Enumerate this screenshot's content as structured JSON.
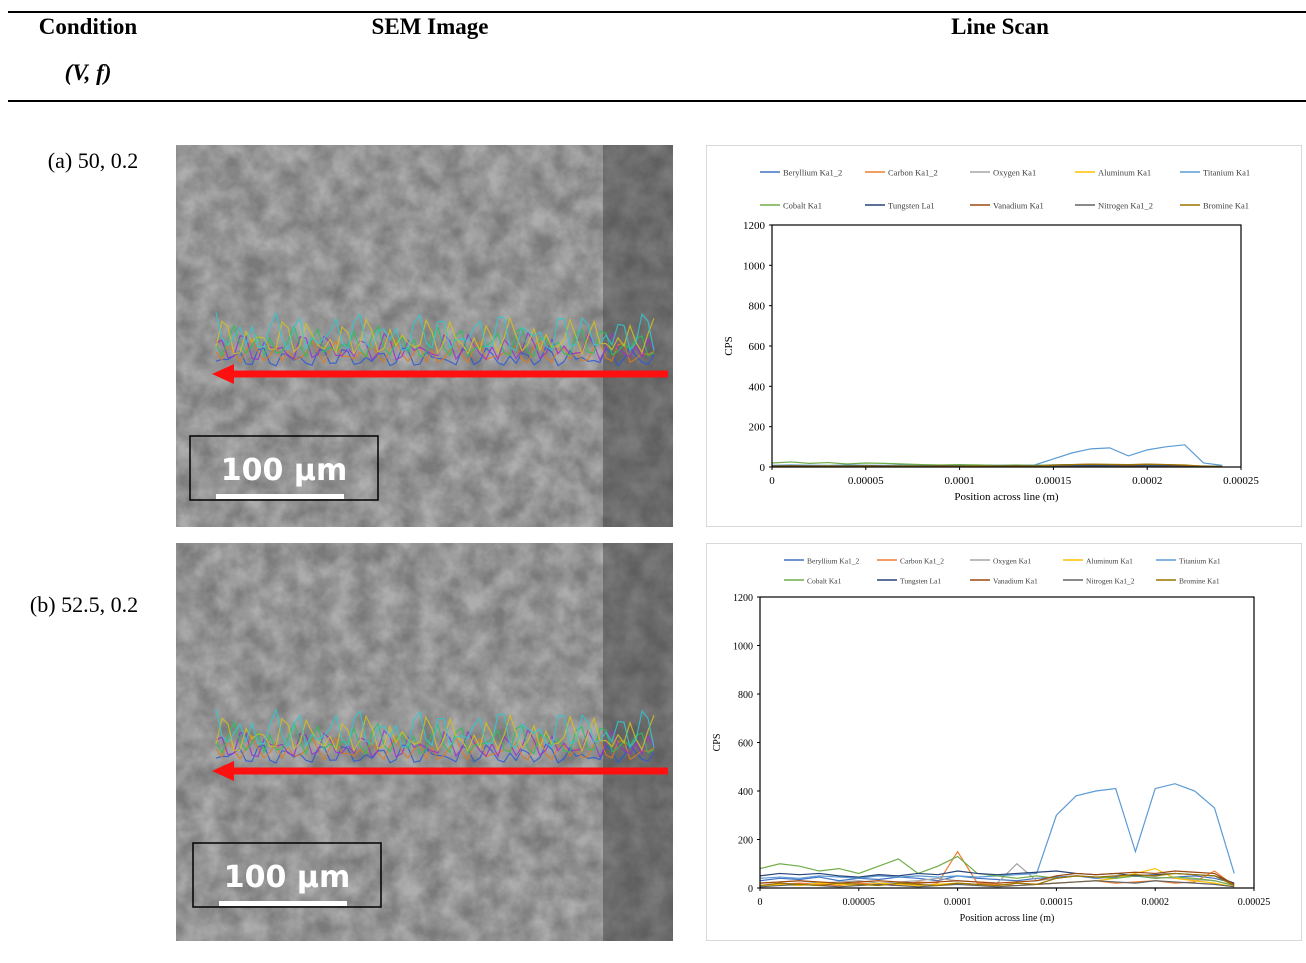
{
  "table": {
    "headers": [
      "Condition",
      "SEM Image",
      "Line Scan"
    ],
    "subheader": "(V, f)",
    "rows": [
      {
        "condition": "(a) 50, 0.2",
        "scale_bar": "100 µm"
      },
      {
        "condition": "(b) 52.5, 0.2",
        "scale_bar": "100 µm"
      }
    ]
  },
  "chart_data": [
    {
      "type": "line",
      "ylabel": "CPS",
      "xlabel": "Position across line (m)",
      "xlim": [
        0,
        0.00025
      ],
      "ylim": [
        0,
        1200
      ],
      "xticks": [
        0,
        5e-05,
        0.0001,
        0.00015,
        0.0002,
        0.00025
      ],
      "yticks": [
        0,
        200,
        400,
        600,
        800,
        1000,
        1200
      ],
      "x": [
        0,
        1e-05,
        2e-05,
        3e-05,
        4e-05,
        5e-05,
        6e-05,
        7e-05,
        8e-05,
        9e-05,
        0.0001,
        0.00011,
        0.00012,
        0.00013,
        0.00014,
        0.00015,
        0.00016,
        0.00017,
        0.00018,
        0.00019,
        0.0002,
        0.00021,
        0.00022,
        0.00023,
        0.00024
      ],
      "series": [
        {
          "name": "Beryllium Ka1_2",
          "color": "#4472c4",
          "values": [
            5,
            8,
            6,
            5,
            7,
            6,
            5,
            8,
            6,
            5,
            6,
            7,
            5,
            6,
            8,
            10,
            12,
            10,
            8,
            9,
            10,
            8,
            6,
            5,
            3
          ]
        },
        {
          "name": "Carbon Ka1_2",
          "color": "#ed7d31",
          "values": [
            3,
            4,
            5,
            3,
            4,
            5,
            4,
            3,
            5,
            4,
            3,
            4,
            5,
            4,
            3,
            5,
            6,
            8,
            7,
            6,
            5,
            6,
            4,
            3,
            2
          ]
        },
        {
          "name": "Oxygen Ka1",
          "color": "#a5a5a5",
          "values": [
            4,
            3,
            5,
            4,
            3,
            4,
            5,
            4,
            3,
            4,
            5,
            3,
            4,
            5,
            4,
            6,
            7,
            6,
            5,
            6,
            7,
            5,
            4,
            3,
            2
          ]
        },
        {
          "name": "Aluminum Ka1",
          "color": "#ffc000",
          "values": [
            2,
            3,
            2,
            3,
            2,
            3,
            2,
            3,
            2,
            3,
            2,
            3,
            2,
            3,
            2,
            4,
            5,
            4,
            5,
            4,
            5,
            4,
            3,
            2,
            1
          ]
        },
        {
          "name": "Titanium Ka1",
          "color": "#5b9bd5",
          "values": [
            8,
            10,
            9,
            8,
            10,
            9,
            8,
            10,
            9,
            8,
            9,
            10,
            8,
            9,
            10,
            40,
            70,
            90,
            95,
            55,
            85,
            100,
            110,
            20,
            8
          ]
        },
        {
          "name": "Cobalt Ka1",
          "color": "#70ad47",
          "values": [
            20,
            25,
            18,
            22,
            15,
            20,
            18,
            15,
            12,
            10,
            12,
            10,
            8,
            10,
            8,
            10,
            8,
            10,
            8,
            10,
            8,
            6,
            5,
            4,
            3
          ]
        },
        {
          "name": "Tungsten La1",
          "color": "#264478",
          "values": [
            6,
            7,
            6,
            5,
            6,
            7,
            6,
            5,
            6,
            7,
            6,
            5,
            6,
            7,
            6,
            8,
            9,
            8,
            7,
            8,
            9,
            8,
            6,
            4,
            2
          ]
        },
        {
          "name": "Vanadium Ka1",
          "color": "#9e480e",
          "values": [
            3,
            4,
            3,
            4,
            3,
            4,
            3,
            4,
            3,
            4,
            3,
            4,
            3,
            4,
            3,
            8,
            12,
            14,
            12,
            10,
            14,
            12,
            8,
            3,
            2
          ]
        },
        {
          "name": "Nitrogen Ka1_2",
          "color": "#636363",
          "values": [
            2,
            3,
            2,
            3,
            2,
            3,
            2,
            3,
            2,
            3,
            2,
            3,
            2,
            3,
            2,
            3,
            4,
            3,
            4,
            3,
            4,
            3,
            2,
            2,
            1
          ]
        },
        {
          "name": "Bromine Ka1",
          "color": "#997300",
          "values": [
            4,
            5,
            4,
            5,
            4,
            5,
            4,
            5,
            4,
            5,
            4,
            5,
            4,
            5,
            4,
            10,
            12,
            14,
            13,
            12,
            14,
            12,
            10,
            4,
            2
          ]
        }
      ]
    },
    {
      "type": "line",
      "ylabel": "CPS",
      "xlabel": "Position across line (m)",
      "xlim": [
        0,
        0.00025
      ],
      "ylim": [
        0,
        1200
      ],
      "xticks": [
        0,
        5e-05,
        0.0001,
        0.00015,
        0.0002,
        0.00025
      ],
      "yticks": [
        0,
        200,
        400,
        600,
        800,
        1000,
        1200
      ],
      "x": [
        0,
        1e-05,
        2e-05,
        3e-05,
        4e-05,
        5e-05,
        6e-05,
        7e-05,
        8e-05,
        9e-05,
        0.0001,
        0.00011,
        0.00012,
        0.00013,
        0.00014,
        0.00015,
        0.00016,
        0.00017,
        0.00018,
        0.00019,
        0.0002,
        0.00021,
        0.00022,
        0.00023,
        0.00024
      ],
      "series": [
        {
          "name": "Beryllium Ka1_2",
          "color": "#4472c4",
          "values": [
            30,
            40,
            35,
            45,
            30,
            40,
            35,
            45,
            40,
            30,
            50,
            40,
            35,
            30,
            40,
            45,
            50,
            40,
            45,
            50,
            40,
            45,
            50,
            40,
            20
          ]
        },
        {
          "name": "Carbon Ka1_2",
          "color": "#ed7d31",
          "values": [
            10,
            15,
            20,
            15,
            10,
            20,
            15,
            10,
            25,
            20,
            150,
            20,
            15,
            10,
            15,
            20,
            25,
            30,
            20,
            25,
            30,
            20,
            25,
            70,
            10
          ]
        },
        {
          "name": "Oxygen Ka1",
          "color": "#a5a5a5",
          "values": [
            20,
            25,
            30,
            20,
            25,
            30,
            20,
            25,
            30,
            40,
            30,
            25,
            20,
            100,
            30,
            40,
            50,
            45,
            40,
            50,
            45,
            40,
            35,
            30,
            10
          ]
        },
        {
          "name": "Aluminum Ka1",
          "color": "#ffc000",
          "values": [
            10,
            15,
            10,
            20,
            15,
            10,
            20,
            15,
            10,
            15,
            20,
            15,
            10,
            20,
            15,
            20,
            25,
            30,
            40,
            60,
            80,
            40,
            30,
            20,
            5
          ]
        },
        {
          "name": "Titanium Ka1",
          "color": "#5b9bd5",
          "values": [
            40,
            45,
            40,
            50,
            45,
            40,
            50,
            45,
            50,
            45,
            50,
            45,
            50,
            55,
            60,
            300,
            380,
            400,
            410,
            150,
            410,
            430,
            400,
            330,
            60
          ]
        },
        {
          "name": "Cobalt Ka1",
          "color": "#70ad47",
          "values": [
            80,
            100,
            90,
            70,
            80,
            60,
            90,
            120,
            60,
            90,
            130,
            60,
            50,
            40,
            50,
            40,
            50,
            45,
            40,
            50,
            40,
            45,
            40,
            30,
            10
          ]
        },
        {
          "name": "Tungsten La1",
          "color": "#264478",
          "values": [
            50,
            60,
            55,
            60,
            50,
            45,
            55,
            50,
            60,
            55,
            70,
            60,
            55,
            60,
            65,
            70,
            60,
            55,
            60,
            50,
            55,
            60,
            55,
            50,
            20
          ]
        },
        {
          "name": "Vanadium Ka1",
          "color": "#9e480e",
          "values": [
            20,
            25,
            30,
            25,
            20,
            25,
            30,
            25,
            20,
            25,
            30,
            25,
            20,
            25,
            30,
            50,
            60,
            55,
            60,
            65,
            60,
            70,
            65,
            60,
            15
          ]
        },
        {
          "name": "Nitrogen Ka1_2",
          "color": "#636363",
          "values": [
            5,
            10,
            15,
            10,
            5,
            10,
            15,
            10,
            5,
            10,
            15,
            10,
            5,
            10,
            15,
            20,
            25,
            30,
            25,
            20,
            30,
            25,
            20,
            15,
            5
          ]
        },
        {
          "name": "Bromine Ka1",
          "color": "#997300",
          "values": [
            10,
            20,
            15,
            10,
            20,
            15,
            10,
            20,
            15,
            10,
            20,
            15,
            10,
            20,
            15,
            40,
            50,
            45,
            50,
            55,
            50,
            60,
            55,
            50,
            10
          ]
        }
      ]
    }
  ]
}
